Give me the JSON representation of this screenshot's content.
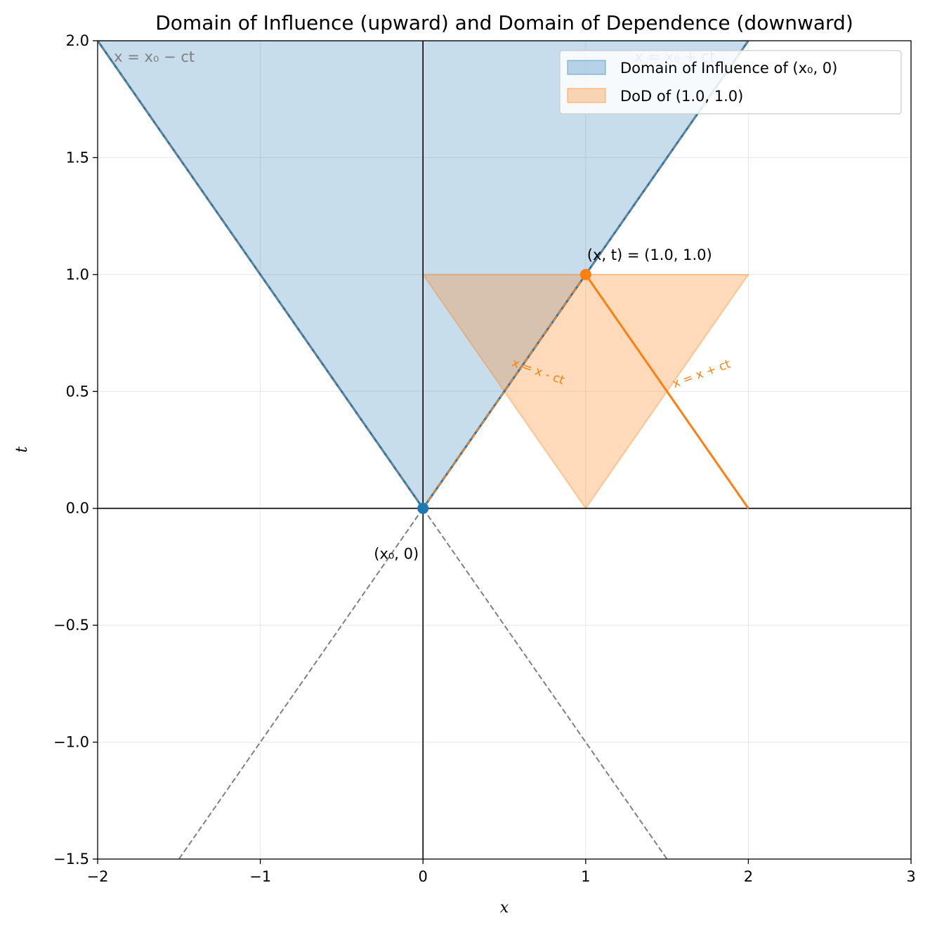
{
  "chart_data": {
    "type": "area",
    "title": "Domain of Influence (upward) and Domain of Dependence (downward)",
    "xlabel": "x",
    "ylabel": "t",
    "xlim": [
      -2,
      3
    ],
    "ylim": [
      -1.5,
      2.0
    ],
    "xticks": [
      -2,
      -1,
      0,
      1,
      2,
      3
    ],
    "xtick_labels": [
      "−2",
      "−1",
      "0",
      "1",
      "2",
      "3"
    ],
    "yticks": [
      -1.5,
      -1.0,
      -0.5,
      0.0,
      0.5,
      1.0,
      1.5,
      2.0
    ],
    "ytick_labels": [
      "−1.5",
      "−1.0",
      "−0.5",
      "0.0",
      "0.5",
      "1.0",
      "1.5",
      "2.0"
    ],
    "grid": true,
    "legend_position": "top-right",
    "colors": {
      "influence": "#1f77b4",
      "dependence": "#ff7f0e",
      "dashed": "#808080"
    },
    "series": [
      {
        "name": "Domain of Influence of (x₀, 0)",
        "kind": "fill",
        "color": "#1f77b4",
        "polygon": [
          [
            0,
            0
          ],
          [
            -2,
            2
          ],
          [
            2,
            2
          ]
        ]
      },
      {
        "name": "DoD of (1.0, 1.0)",
        "kind": "fill",
        "color": "#ff7f0e",
        "polygon": [
          [
            0,
            1
          ],
          [
            1,
            0
          ],
          [
            2,
            1
          ]
        ]
      }
    ],
    "lines": [
      {
        "style": "solid",
        "color": "#1f77b4",
        "points": [
          [
            0,
            0
          ],
          [
            -2,
            2
          ]
        ]
      },
      {
        "style": "solid",
        "color": "#1f77b4",
        "points": [
          [
            0,
            0
          ],
          [
            2,
            2
          ]
        ]
      },
      {
        "style": "dashed",
        "color": "#808080",
        "points": [
          [
            0,
            0
          ],
          [
            -2,
            2
          ]
        ]
      },
      {
        "style": "dashed",
        "color": "#808080",
        "points": [
          [
            0,
            0
          ],
          [
            2,
            2
          ]
        ]
      },
      {
        "style": "dashed",
        "color": "#808080",
        "points": [
          [
            0,
            0
          ],
          [
            -1.5,
            -1.5
          ]
        ]
      },
      {
        "style": "dashed",
        "color": "#808080",
        "points": [
          [
            0,
            0
          ],
          [
            1.5,
            -1.5
          ]
        ]
      },
      {
        "style": "solid",
        "color": "#ff7f0e",
        "points": [
          [
            1,
            1
          ],
          [
            2,
            0
          ]
        ]
      },
      {
        "style": "dashed",
        "color": "#ff7f0e",
        "points": [
          [
            1,
            1
          ],
          [
            0,
            0
          ]
        ]
      }
    ],
    "points": [
      {
        "x": 0,
        "y": 0,
        "color": "#1f77b4",
        "label": "(x₀, 0)"
      },
      {
        "x": 1,
        "y": 1,
        "color": "#ff7f0e",
        "label": "(x, t) = (1.0, 1.0)"
      }
    ],
    "annotations": [
      {
        "text": "x = x₀ − ct",
        "x": -1.9,
        "y": 1.91,
        "color": "gray"
      },
      {
        "text": "x = x₀ + ct",
        "x": 1.3,
        "y": 1.91,
        "color": "gray"
      },
      {
        "text": "x = x - ct",
        "x": 0.7,
        "y": 0.57,
        "color": "orange",
        "rotation": 20
      },
      {
        "text": "x = x + ct",
        "x": 1.72,
        "y": 0.56,
        "color": "orange",
        "rotation": -20
      }
    ]
  }
}
